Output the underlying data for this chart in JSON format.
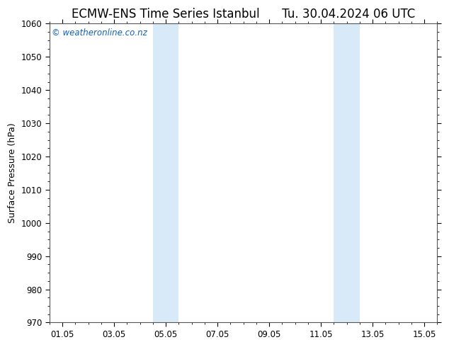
{
  "title_left": "ECMW-ENS Time Series Istanbul",
  "title_right": "Tu. 30.04.2024 06 UTC",
  "ylabel": "Surface Pressure (hPa)",
  "ylim": [
    970,
    1060
  ],
  "yticks": [
    970,
    980,
    990,
    1000,
    1010,
    1020,
    1030,
    1040,
    1050,
    1060
  ],
  "xtick_labels": [
    "01.05",
    "03.05",
    "05.05",
    "07.05",
    "09.05",
    "11.05",
    "13.05",
    "15.05"
  ],
  "xtick_positions": [
    0,
    2,
    4,
    6,
    8,
    10,
    12,
    14
  ],
  "xmin": -0.5,
  "xmax": 14.5,
  "shaded_bands": [
    {
      "x_start": 3.5,
      "x_end": 4.5
    },
    {
      "x_start": 10.5,
      "x_end": 11.5
    }
  ],
  "shaded_color": "#d8eaf8",
  "background_color": "#ffffff",
  "plot_bg_color": "#ffffff",
  "watermark_text": "© weatheronline.co.nz",
  "watermark_color": "#1060c0",
  "title_fontsize": 12,
  "label_fontsize": 9,
  "tick_fontsize": 8.5,
  "watermark_fontsize": 8.5
}
